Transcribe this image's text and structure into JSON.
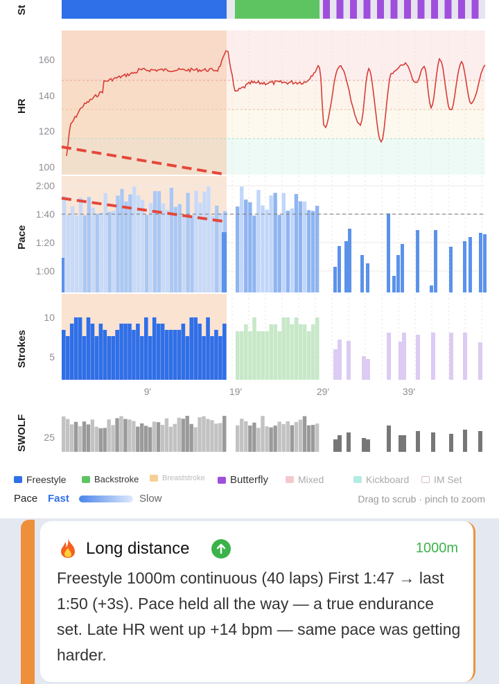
{
  "axes": {
    "stroke_label": "St",
    "hr_label": "HR",
    "pace_label": "Pace",
    "strokes_label": "Strokes",
    "swolf_label": "SWOLF",
    "hr_ticks": [
      "160",
      "140",
      "120",
      "100"
    ],
    "pace_ticks": [
      "2:00",
      "1:40",
      "1:20",
      "1:00"
    ],
    "strokes_ticks": [
      "10",
      "5"
    ],
    "swolf_ticks": [
      "25"
    ],
    "x_ticks": [
      "9'",
      "19'",
      "29'",
      "39'"
    ]
  },
  "legend": {
    "items": [
      {
        "label": "Freestyle",
        "color": "#2f6fe8"
      },
      {
        "label": "Backstroke",
        "color": "#5ec462"
      },
      {
        "label": "Breaststroke",
        "color": "#f7cf98"
      },
      {
        "label": "Butterfly",
        "color": "#a04fdc"
      },
      {
        "label": "Mixed",
        "color": "#f5c8cf"
      },
      {
        "label": "Kickboard",
        "color": "#b4ebe4"
      },
      {
        "label": "IM Set",
        "color": "#ffffff"
      }
    ],
    "pace_label": "Pace",
    "fast_label": "Fast",
    "slow_label": "Slow",
    "hint": "Drag to scrub · pinch to zoom"
  },
  "colors": {
    "freestyle": "#2f6fe8",
    "backstroke": "#5ec462",
    "butterfly": "#a04fdc",
    "hr_line": "#d63c36",
    "trend": "#e4473a",
    "accent": "#ee8f3c",
    "highlight": "#3bb34a"
  },
  "card": {
    "icon": "fire-icon",
    "title": "Long distance",
    "badge_icon": "arrow-up-icon",
    "distance": "1000m",
    "body": "Freestyle 1000m continuous (40 laps) First 1:47 → last 1:50 (+3s). Pace held all the way — a true endurance set. Late HR went up +14 bpm — same pace was getting harder."
  }
}
